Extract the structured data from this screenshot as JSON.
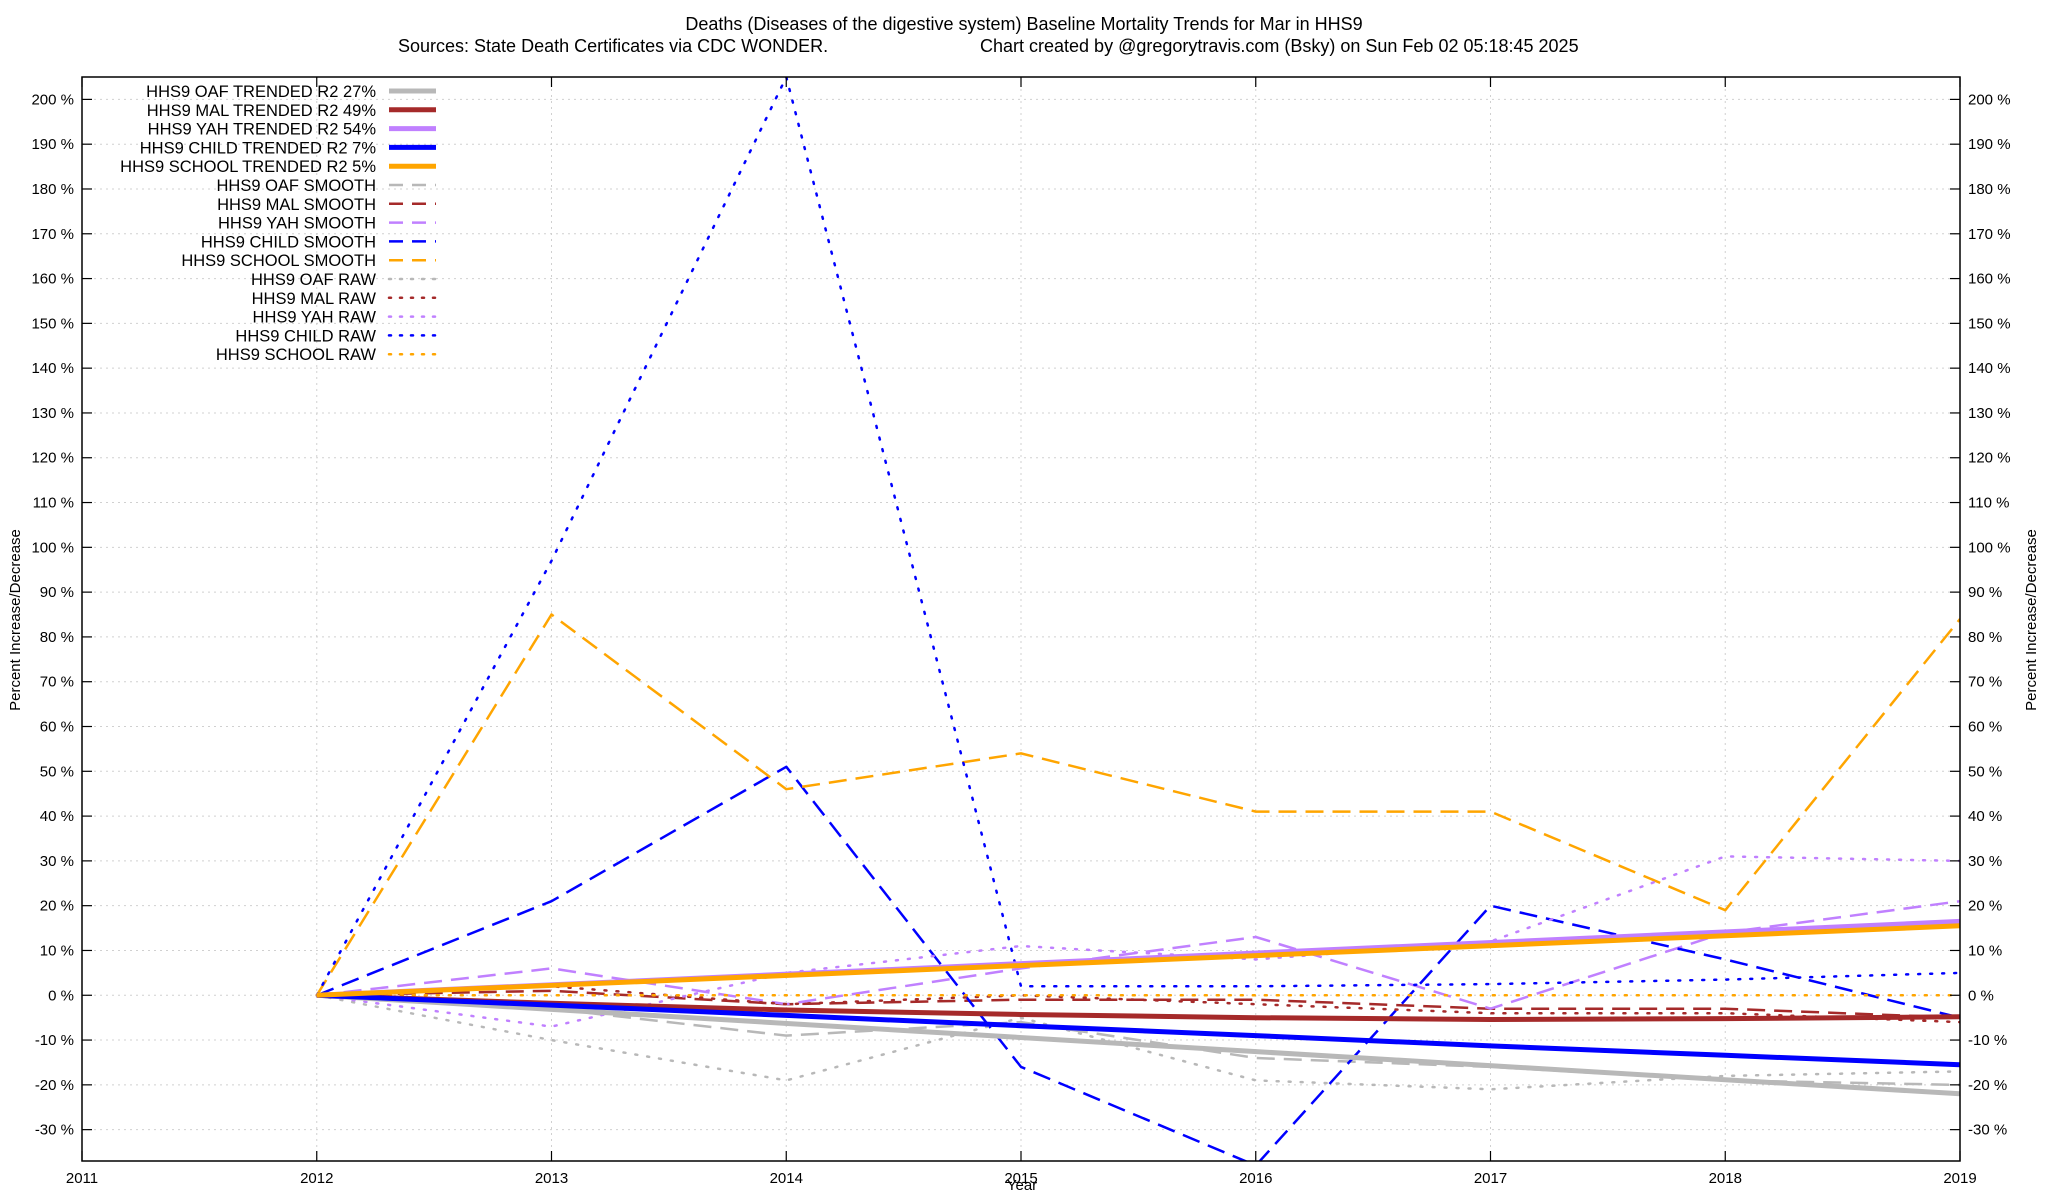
{
  "chart_data": {
    "type": "line",
    "title": "Deaths (Diseases of the digestive system)  Baseline Mortality Trends for Mar in HHS9",
    "subtitle_left": "Sources: State Death Certificates via CDC WONDER.",
    "subtitle_right": "Chart created by @gregorytravis.com (Bsky) on Sun Feb 02 05:18:45 2025",
    "xlabel": "Year",
    "ylabel_left": "Percent Increase/Decrease",
    "ylabel_right": "Percent Increase/Decrease",
    "xlim": [
      2011,
      2019
    ],
    "ylim": [
      -37,
      205
    ],
    "x_ticks": [
      "2011",
      "2012",
      "2013",
      "2014",
      "2015",
      "2016",
      "2017",
      "2018",
      "2019"
    ],
    "y_ticks": [
      {
        "value": 200,
        "label": "200 %"
      },
      {
        "value": 190,
        "label": "190 %"
      },
      {
        "value": 180,
        "label": "180 %"
      },
      {
        "value": 170,
        "label": "170 %"
      },
      {
        "value": 160,
        "label": "160 %"
      },
      {
        "value": 150,
        "label": "150 %"
      },
      {
        "value": 140,
        "label": "140 %"
      },
      {
        "value": 130,
        "label": "130 %"
      },
      {
        "value": 120,
        "label": "120 %"
      },
      {
        "value": 110,
        "label": "110 %"
      },
      {
        "value": 100,
        "label": "100 %"
      },
      {
        "value": 90,
        "label": "90 %"
      },
      {
        "value": 80,
        "label": "80 %"
      },
      {
        "value": 70,
        "label": "70 %"
      },
      {
        "value": 60,
        "label": "60 %"
      },
      {
        "value": 50,
        "label": "50 %"
      },
      {
        "value": 40,
        "label": "40 %"
      },
      {
        "value": 30,
        "label": "30 %"
      },
      {
        "value": 20,
        "label": "20 %"
      },
      {
        "value": 10,
        "label": "10 %"
      },
      {
        "value": 0,
        "label": "0 %"
      },
      {
        "value": -10,
        "label": "-10 %"
      },
      {
        "value": -20,
        "label": "-20 %"
      },
      {
        "value": -30,
        "label": "-30 %"
      }
    ],
    "grid": true,
    "legend_position": "top-left",
    "series": [
      {
        "name": "HHS9 OAF TRENDED R2  27%",
        "style": "solid",
        "color": "#b8b8b8",
        "width": 5,
        "x": [
          2012,
          2019
        ],
        "y": [
          0,
          -22
        ]
      },
      {
        "name": "HHS9 MAL TRENDED R2  49%",
        "style": "solid",
        "color": "#a52a2a",
        "width": 5,
        "x": [
          2012,
          2013,
          2014,
          2015,
          2016,
          2017,
          2018,
          2019
        ],
        "y": [
          0,
          -1.8,
          -3.3,
          -4.3,
          -5.0,
          -5.4,
          -5.2,
          -4.8
        ]
      },
      {
        "name": "HHS9 YAH TRENDED R2  54%",
        "style": "solid",
        "color": "#c080ff",
        "width": 5,
        "x": [
          2012,
          2019
        ],
        "y": [
          0,
          16.5
        ]
      },
      {
        "name": "HHS9 CHILD TRENDED R2   7%",
        "style": "solid",
        "color": "#0000ff",
        "width": 5,
        "x": [
          2012,
          2013,
          2014,
          2015,
          2016,
          2017,
          2018,
          2019
        ],
        "y": [
          0,
          -2.2,
          -4.5,
          -6.8,
          -9.0,
          -11.3,
          -13.4,
          -15.5
        ]
      },
      {
        "name": "HHS9 SCHOOL TRENDED R2   5%",
        "style": "solid",
        "color": "#ffa500",
        "width": 5,
        "x": [
          2012,
          2019
        ],
        "y": [
          0,
          15.5
        ]
      },
      {
        "name": "HHS9 OAF SMOOTH",
        "style": "dashed",
        "color": "#b8b8b8",
        "width": 2.5,
        "x": [
          2012,
          2013,
          2014,
          2015,
          2016,
          2017,
          2018,
          2019
        ],
        "y": [
          0,
          -3,
          -9,
          -6,
          -14,
          -16,
          -19,
          -20
        ]
      },
      {
        "name": "HHS9 MAL SMOOTH",
        "style": "dashed",
        "color": "#a52a2a",
        "width": 2.5,
        "x": [
          2012,
          2013,
          2014,
          2015,
          2016,
          2017,
          2018,
          2019
        ],
        "y": [
          0,
          1,
          -2,
          -1,
          -1,
          -3,
          -3,
          -5
        ]
      },
      {
        "name": "HHS9 YAH SMOOTH",
        "style": "dashed",
        "color": "#c080ff",
        "width": 2.5,
        "x": [
          2012,
          2013,
          2014,
          2015,
          2016,
          2017,
          2018,
          2019
        ],
        "y": [
          0,
          6,
          -2,
          6,
          13,
          -3,
          14,
          21
        ]
      },
      {
        "name": "HHS9 CHILD SMOOTH",
        "style": "dashed",
        "color": "#0000ff",
        "width": 2.5,
        "x": [
          2012,
          2013,
          2014,
          2015,
          2016,
          2017,
          2018,
          2019
        ],
        "y": [
          0,
          21,
          51,
          -16,
          -38,
          20,
          8,
          -5
        ]
      },
      {
        "name": "HHS9 SCHOOL SMOOTH",
        "style": "dashed",
        "color": "#ffa500",
        "width": 2.5,
        "x": [
          2012,
          2013,
          2014,
          2015,
          2016,
          2017,
          2018,
          2019
        ],
        "y": [
          0,
          85,
          46,
          54,
          41,
          41,
          19,
          84
        ]
      },
      {
        "name": "HHS9 OAF RAW",
        "style": "dotted",
        "color": "#b8b8b8",
        "width": 2.5,
        "x": [
          2012,
          2013,
          2014,
          2015,
          2016,
          2017,
          2018,
          2019
        ],
        "y": [
          0,
          -10,
          -19,
          -5,
          -19,
          -21,
          -18,
          -17
        ]
      },
      {
        "name": "HHS9 MAL RAW",
        "style": "dotted",
        "color": "#a52a2a",
        "width": 2.5,
        "x": [
          2012,
          2013,
          2014,
          2015,
          2016,
          2017,
          2018,
          2019
        ],
        "y": [
          0,
          2,
          -2,
          0,
          -2,
          -4,
          -4,
          -6
        ]
      },
      {
        "name": "HHS9 YAH RAW",
        "style": "dotted",
        "color": "#c080ff",
        "width": 2.5,
        "x": [
          2012,
          2013,
          2014,
          2015,
          2016,
          2017,
          2018,
          2019
        ],
        "y": [
          0,
          -7,
          5,
          11,
          8,
          12,
          31,
          30
        ]
      },
      {
        "name": "HHS9 CHILD RAW",
        "style": "dotted",
        "color": "#0000ff",
        "width": 2.5,
        "x": [
          2012,
          2013,
          2014,
          2015,
          2016,
          2017,
          2018,
          2019
        ],
        "y": [
          0,
          97,
          205,
          2,
          2,
          2.5,
          3.5,
          5
        ]
      },
      {
        "name": "HHS9 SCHOOL RAW",
        "style": "dotted",
        "color": "#ffa500",
        "width": 2.5,
        "x": [
          2012,
          2013,
          2014,
          2015,
          2016,
          2017,
          2018,
          2019
        ],
        "y": [
          0,
          0,
          0,
          0,
          0,
          0,
          0,
          0
        ]
      }
    ]
  }
}
